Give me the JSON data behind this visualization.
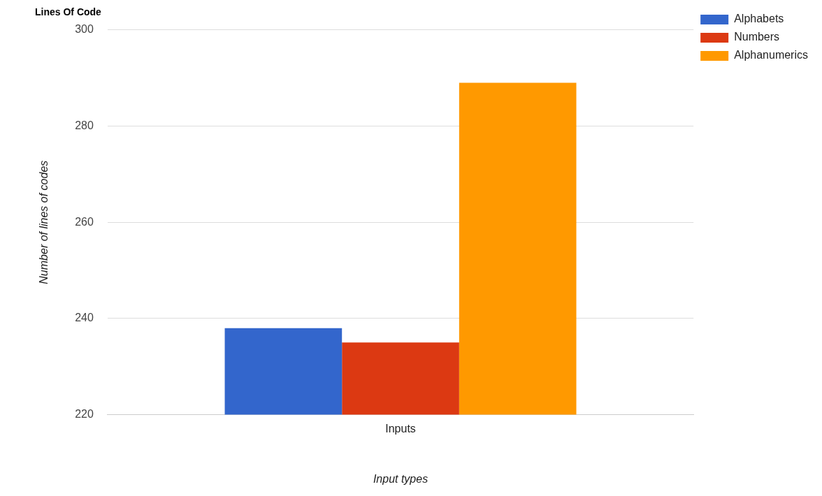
{
  "chart_data": {
    "type": "bar",
    "title": "Lines Of Code",
    "xlabel": "Input types",
    "ylabel": "Number of lines of codes",
    "categories": [
      "Inputs"
    ],
    "series": [
      {
        "name": "Alphabets",
        "color": "#3366cc",
        "values": [
          238
        ]
      },
      {
        "name": "Numbers",
        "color": "#dc3912",
        "values": [
          235
        ]
      },
      {
        "name": "Alphanumerics",
        "color": "#ff9900",
        "values": [
          289
        ]
      }
    ],
    "ylim": [
      220,
      300
    ],
    "yticks": [
      220,
      240,
      260,
      280,
      300
    ],
    "grid": "y",
    "legend": "top right"
  }
}
